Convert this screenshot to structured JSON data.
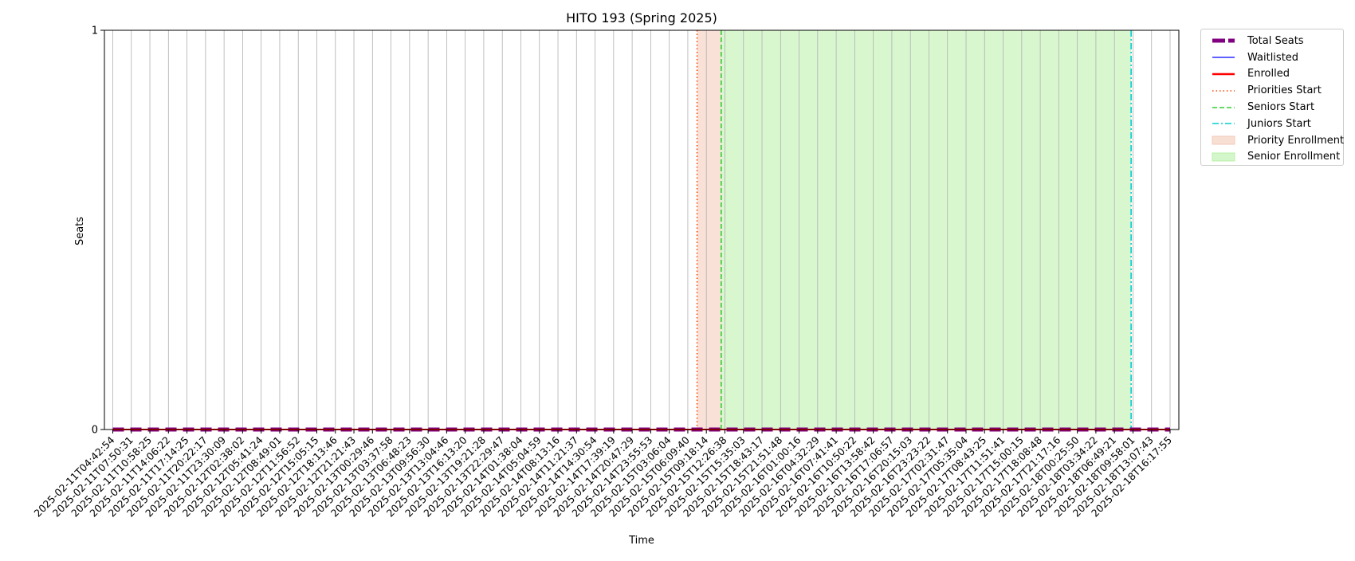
{
  "chart_data": {
    "type": "line",
    "title": "HITO 193 (Spring 2025)",
    "xlabel": "Time",
    "ylabel": "Seats",
    "ylim": [
      0,
      1
    ],
    "y_ticks": [
      "0",
      "1"
    ],
    "grid": "vertical",
    "legend_placement": "outside-top-right",
    "x": [
      "2025-02-11T04:42:54",
      "2025-02-11T07:50:31",
      "2025-02-11T10:58:25",
      "2025-02-11T14:06:22",
      "2025-02-11T17:14:25",
      "2025-02-11T20:22:17",
      "2025-02-11T23:30:09",
      "2025-02-12T02:38:02",
      "2025-02-12T05:41:24",
      "2025-02-12T08:49:01",
      "2025-02-12T11:56:52",
      "2025-02-12T15:05:15",
      "2025-02-12T18:13:46",
      "2025-02-12T21:21:43",
      "2025-02-13T00:29:46",
      "2025-02-13T03:37:58",
      "2025-02-13T06:48:23",
      "2025-02-13T09:56:30",
      "2025-02-13T13:04:46",
      "2025-02-13T16:13:20",
      "2025-02-13T19:21:28",
      "2025-02-13T22:29:47",
      "2025-02-14T01:38:04",
      "2025-02-14T05:04:59",
      "2025-02-14T08:13:16",
      "2025-02-14T11:21:37",
      "2025-02-14T14:30:54",
      "2025-02-14T17:39:19",
      "2025-02-14T20:47:29",
      "2025-02-14T23:55:53",
      "2025-02-15T03:06:04",
      "2025-02-15T06:09:40",
      "2025-02-15T09:18:14",
      "2025-02-15T12:26:38",
      "2025-02-15T15:35:03",
      "2025-02-15T18:43:17",
      "2025-02-15T21:51:48",
      "2025-02-16T01:00:16",
      "2025-02-16T04:32:29",
      "2025-02-16T07:41:41",
      "2025-02-16T10:50:22",
      "2025-02-16T13:58:42",
      "2025-02-16T17:06:57",
      "2025-02-16T20:15:03",
      "2025-02-16T23:23:22",
      "2025-02-17T02:31:47",
      "2025-02-17T05:35:04",
      "2025-02-17T08:43:25",
      "2025-02-17T11:51:41",
      "2025-02-17T15:00:15",
      "2025-02-17T18:08:48",
      "2025-02-17T21:17:16",
      "2025-02-18T00:25:50",
      "2025-02-18T03:34:22",
      "2025-02-18T06:49:21",
      "2025-02-18T09:58:01",
      "2025-02-18T13:07:43",
      "2025-02-18T16:17:55"
    ],
    "series": [
      {
        "name": "Total Seats",
        "color": "#800080",
        "style": "dashed-thick",
        "values": [
          0,
          0,
          0,
          0,
          0,
          0,
          0,
          0,
          0,
          0,
          0,
          0,
          0,
          0,
          0,
          0,
          0,
          0,
          0,
          0,
          0,
          0,
          0,
          0,
          0,
          0,
          0,
          0,
          0,
          0,
          0,
          0,
          0,
          0,
          0,
          0,
          0,
          0,
          0,
          0,
          0,
          0,
          0,
          0,
          0,
          0,
          0,
          0,
          0,
          0,
          0,
          0,
          0,
          0,
          0,
          0,
          0,
          0
        ]
      },
      {
        "name": "Waitlisted",
        "color": "#0000ff",
        "style": "solid-thin",
        "values": [
          0,
          0,
          0,
          0,
          0,
          0,
          0,
          0,
          0,
          0,
          0,
          0,
          0,
          0,
          0,
          0,
          0,
          0,
          0,
          0,
          0,
          0,
          0,
          0,
          0,
          0,
          0,
          0,
          0,
          0,
          0,
          0,
          0,
          0,
          0,
          0,
          0,
          0,
          0,
          0,
          0,
          0,
          0,
          0,
          0,
          0,
          0,
          0,
          0,
          0,
          0,
          0,
          0,
          0,
          0,
          0,
          0,
          0
        ]
      },
      {
        "name": "Enrolled",
        "color": "#ff0000",
        "style": "solid-thick",
        "values": [
          0,
          0,
          0,
          0,
          0,
          0,
          0,
          0,
          0,
          0,
          0,
          0,
          0,
          0,
          0,
          0,
          0,
          0,
          0,
          0,
          0,
          0,
          0,
          0,
          0,
          0,
          0,
          0,
          0,
          0,
          0,
          0,
          0,
          0,
          0,
          0,
          0,
          0,
          0,
          0,
          0,
          0,
          0,
          0,
          0,
          0,
          0,
          0,
          0,
          0,
          0,
          0,
          0,
          0,
          0,
          0,
          0,
          0
        ]
      }
    ],
    "vertical_markers": [
      {
        "name": "Priorities Start",
        "at_index": 31.5,
        "color": "#ff4500",
        "style": "dotted"
      },
      {
        "name": "Seniors Start",
        "at_index": 32.8,
        "color": "#32cd32",
        "style": "dashed"
      },
      {
        "name": "Juniors Start",
        "at_index": 54.9,
        "color": "#00ced1",
        "style": "dashdot"
      }
    ],
    "shaded_regions": [
      {
        "name": "Priority Enrollment",
        "from_index": 31.5,
        "to_index": 32.8,
        "color": "#f4c9b7"
      },
      {
        "name": "Senior Enrollment",
        "from_index": 32.8,
        "to_index": 54.9,
        "color": "#b8f0a8"
      }
    ],
    "legend": [
      {
        "label": "Total Seats",
        "kind": "line-thick",
        "color": "#800080"
      },
      {
        "label": "Waitlisted",
        "kind": "line",
        "color": "#0000ff"
      },
      {
        "label": "Enrolled",
        "kind": "line-bold",
        "color": "#ff0000"
      },
      {
        "label": "Priorities Start",
        "kind": "dotted",
        "color": "#ff4500"
      },
      {
        "label": "Seniors Start",
        "kind": "dashed",
        "color": "#32cd32"
      },
      {
        "label": "Juniors Start",
        "kind": "dashdot",
        "color": "#00ced1"
      },
      {
        "label": "Priority Enrollment",
        "kind": "patch",
        "color": "#f4c9b7"
      },
      {
        "label": "Senior Enrollment",
        "kind": "patch",
        "color": "#b8f0a8"
      }
    ]
  }
}
